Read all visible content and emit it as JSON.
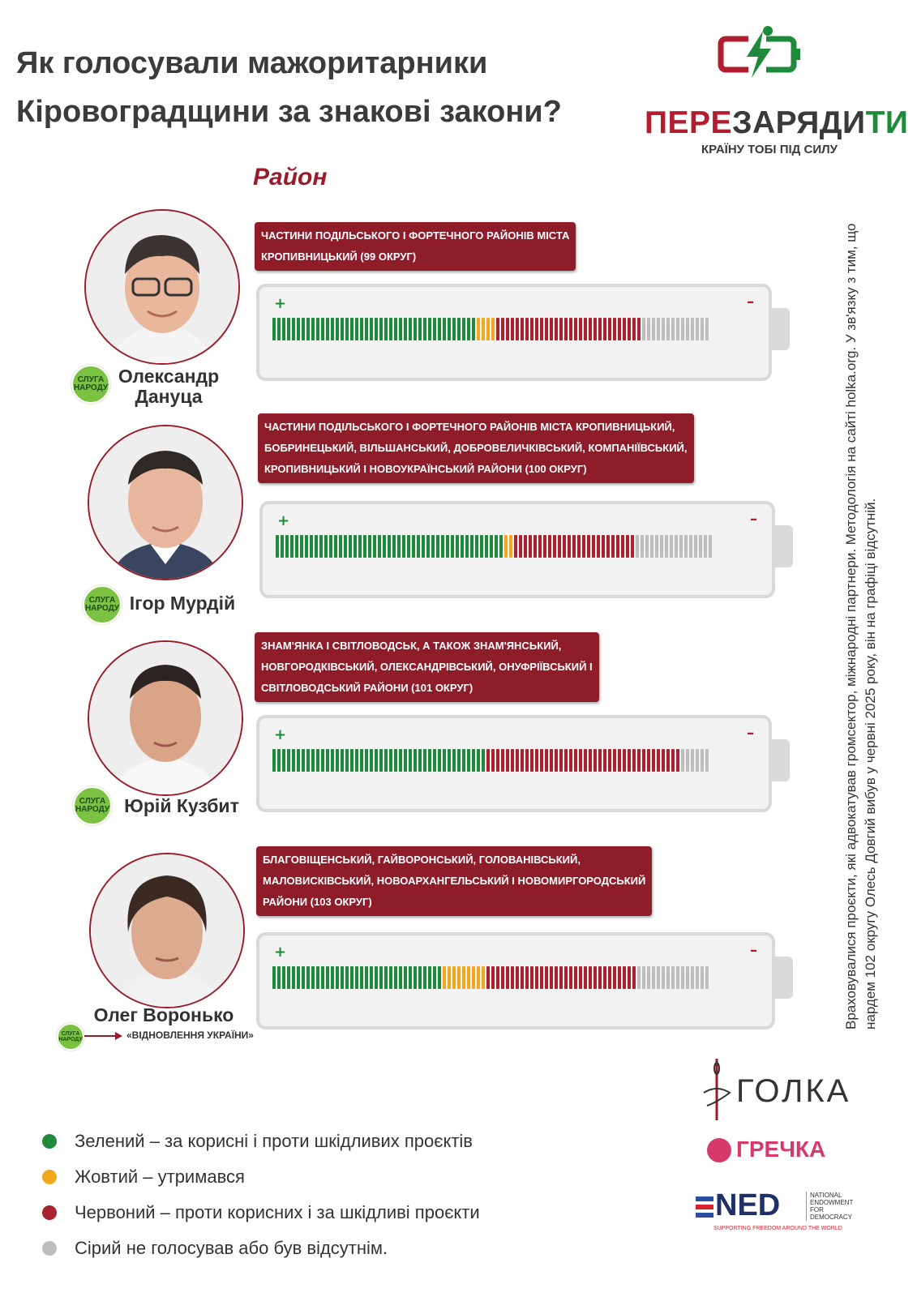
{
  "title": {
    "line1": "Як голосували мажоритарники",
    "line2": "Кіровоградщини за знакові закони?"
  },
  "logo": {
    "word_red": "ПЕРЕ",
    "word_dark": "ЗАРЯДИ",
    "word_green": "ТИ",
    "tagline": "КРАЇНУ ТОБІ ПІД СИЛУ"
  },
  "column_header": "Район",
  "colors": {
    "green": "#1f8a3b",
    "yellow": "#f0a81e",
    "red": "#a8232f",
    "grey": "#bdbdbd",
    "accent": "#8f1c29"
  },
  "deputies": [
    {
      "name": [
        "Олександр",
        "Дануца"
      ],
      "party_badge": [
        "СЛУГА",
        "НАРОДУ"
      ],
      "district": [
        "ЧАСТИНИ ПОДІЛЬСЬКОГО І ФОРТЕЧНОГО РАЙОНІВ МІСТА",
        "КРОПИВНИЦЬКИЙ (99 ОКРУГ)"
      ],
      "votes": {
        "green": 42,
        "yellow": 4,
        "red": 30,
        "grey": 14
      }
    },
    {
      "name": [
        "Ігор Мурдій"
      ],
      "party_badge": [
        "СЛУГА",
        "НАРОДУ"
      ],
      "district": [
        "ЧАСТИНИ ПОДІЛЬСЬКОГО І ФОРТЕЧНОГО РАЙОНІВ МІСТА КРОПИВНИЦЬКИЙ,",
        "БОБРИНЕЦЬКИЙ, ВІЛЬШАНСЬКИЙ, ДОБРОВЕЛИЧКІВСЬКИЙ, КОМПАНІЇВСЬКИЙ,",
        "КРОПИВНИЦЬКИЙ І НОВОУКРАЇНСЬКИЙ РАЙОНИ (100 ОКРУГ)"
      ],
      "votes": {
        "green": 47,
        "yellow": 2,
        "red": 25,
        "grey": 16
      }
    },
    {
      "name": [
        "Юрій Кузбит"
      ],
      "party_badge": [
        "СЛУГА",
        "НАРОДУ"
      ],
      "district": [
        "ЗНАМ'ЯНКА І СВІТЛОВОДСЬК, А ТАКОЖ ЗНАМ'ЯНСЬКИЙ,",
        "НОВГОРОДКІВСЬКИЙ, ОЛЕКСАНДРІВСЬКИЙ, ОНУФРІЇВСЬКИЙ І",
        "СВІТЛОВОДСЬКИЙ РАЙОНИ (101 ОКРУГ)"
      ],
      "votes": {
        "green": 44,
        "yellow": 0,
        "red": 40,
        "grey": 6
      }
    },
    {
      "name": [
        "Олег Воронько"
      ],
      "party_badge": [
        "СЛУГА",
        "НАРОДУ"
      ],
      "party_note": "«ВІДНОВЛЕННЯ УКРАЇНИ»",
      "district": [
        "БЛАГОВІЩЕНСЬКИЙ, ГАЙВОРОНСЬКИЙ, ГОЛОВАНІВСЬКИЙ,",
        "МАЛОВИСКІВСЬКИЙ, НОВОАРХАНГЕЛЬСЬКИЙ І НОВОМИРГОРОДСЬКИЙ",
        "РАЙОНИ (103 ОКРУГ)"
      ],
      "votes": {
        "green": 35,
        "yellow": 9,
        "red": 31,
        "grey": 15
      }
    }
  ],
  "battery_signs": {
    "plus": "+",
    "minus": "–"
  },
  "side_note": "Враховувалися проєкти, які адвокатував громсектор, міжнародні партнери. Методологія на сайті holka.org. У зв'язку з тим, що нардем 102 округу Олесь Довгий вибув у червні 2025 року, він на графіці відсутній.",
  "legend": [
    {
      "color": "#1f8a3b",
      "text": "Зелений – за корисні і проти шкідливих проєктів"
    },
    {
      "color": "#f0a81e",
      "text": "Жовтий – утримався"
    },
    {
      "color": "#a8232f",
      "text": "Червоний – проти корисних і за шкідливі проєкти"
    },
    {
      "color": "#bdbdbd",
      "text": "Сірий не голосував або був відсутнім."
    }
  ],
  "partners": {
    "holka": "ГОЛКА",
    "hrechka": "ГРЕЧКА",
    "ned": "NED",
    "ned_full": [
      "NATIONAL",
      "ENDOWMENT",
      "FOR",
      "DEMOCRACY"
    ],
    "ned_slogan": "SUPPORTING FREEDOM AROUND THE WORLD"
  }
}
